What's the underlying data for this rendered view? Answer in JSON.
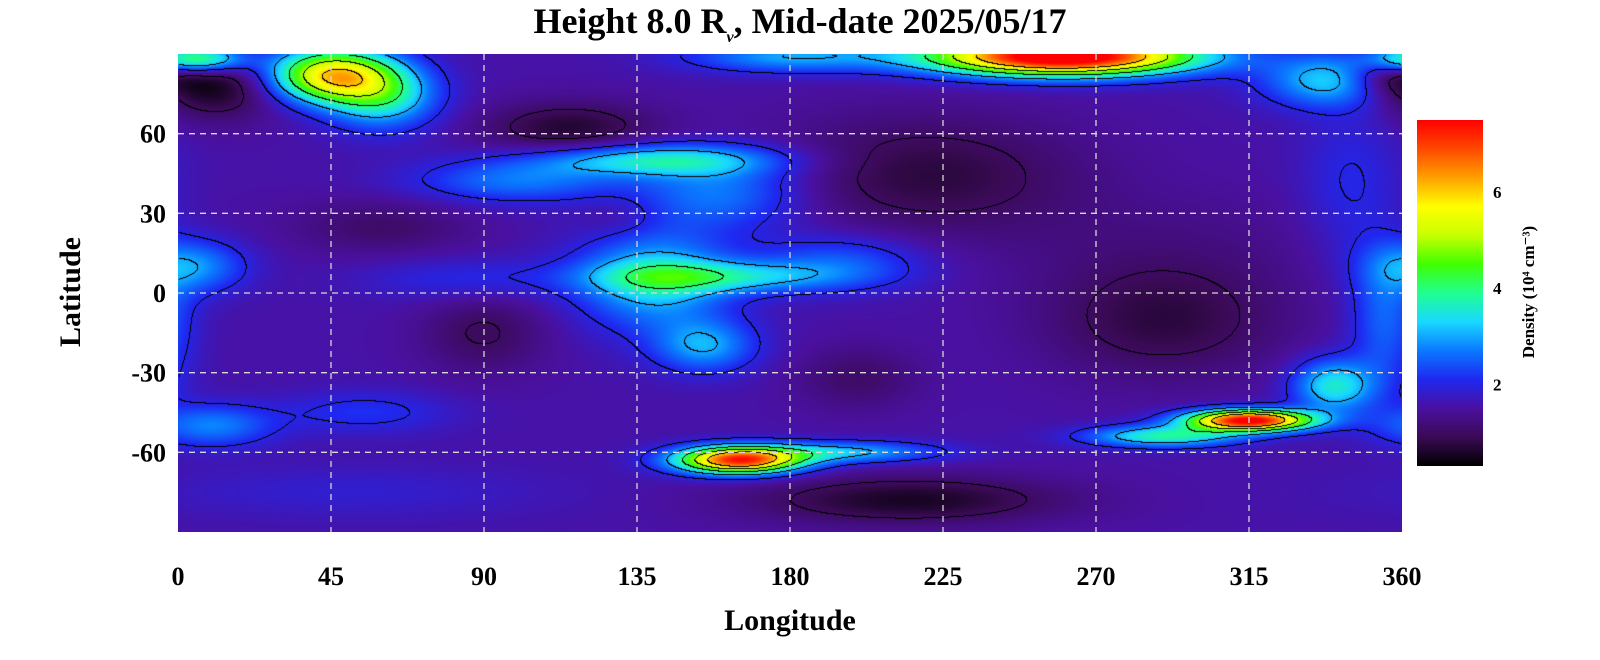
{
  "chart_data": {
    "type": "heatmap",
    "title": {
      "prefix": "Height 8.0 R",
      "subscript": "ν",
      "suffix": ", Mid-date 2025/05/17"
    },
    "xlabel": "Longitude",
    "ylabel": "Latitude",
    "x_ticks": [
      0,
      45,
      90,
      135,
      180,
      225,
      270,
      315,
      360
    ],
    "y_ticks": [
      60,
      30,
      0,
      -30,
      -60
    ],
    "xlim": [
      0,
      360
    ],
    "ylim": [
      -90,
      90
    ],
    "grid": true,
    "contour_lines": true,
    "colorbar": {
      "label": "Density (10⁴ cm⁻³)",
      "ticks": [
        2,
        4,
        6
      ],
      "range": [
        0.3,
        7.5
      ],
      "colormap": [
        "#000000",
        "#3a0a55",
        "#4a10a0",
        "#1f28f0",
        "#0a78ff",
        "#19d8ff",
        "#20ff90",
        "#40ff00",
        "#c8ff00",
        "#ffff00",
        "#ffa000",
        "#ff4800",
        "#ff0000"
      ]
    },
    "base_density": 1.55,
    "features": [
      {
        "lon": 10,
        "lat": 78,
        "amp": -1.2,
        "w": 20,
        "h": 12
      },
      {
        "lon": 45,
        "lat": 82,
        "amp": 4.2,
        "w": 18,
        "h": 10
      },
      {
        "lon": 60,
        "lat": 74,
        "amp": 2.0,
        "w": 16,
        "h": 12
      },
      {
        "lon": 5,
        "lat": 88,
        "amp": 3.0,
        "w": 14,
        "h": 5
      },
      {
        "lon": 115,
        "lat": 62,
        "amp": -0.9,
        "w": 25,
        "h": 10
      },
      {
        "lon": 260,
        "lat": 89,
        "amp": 6.8,
        "w": 38,
        "h": 7
      },
      {
        "lon": 180,
        "lat": 89,
        "amp": 1.4,
        "w": 30,
        "h": 6
      },
      {
        "lon": 340,
        "lat": 80,
        "amp": 1.8,
        "w": 20,
        "h": 10
      },
      {
        "lon": 355,
        "lat": 82,
        "amp": -1.0,
        "w": 12,
        "h": 8
      },
      {
        "lon": 140,
        "lat": 50,
        "amp": 1.9,
        "w": 35,
        "h": 6
      },
      {
        "lon": 100,
        "lat": 42,
        "amp": 1.1,
        "w": 30,
        "h": 8
      },
      {
        "lon": 160,
        "lat": 38,
        "amp": 1.2,
        "w": 25,
        "h": 14
      },
      {
        "lon": 140,
        "lat": 5,
        "amp": 1.8,
        "w": 22,
        "h": 18
      },
      {
        "lon": 160,
        "lat": 6,
        "amp": 1.6,
        "w": 35,
        "h": 6
      },
      {
        "lon": 155,
        "lat": -20,
        "amp": 1.4,
        "w": 15,
        "h": 10
      },
      {
        "lon": 195,
        "lat": 12,
        "amp": 0.9,
        "w": 25,
        "h": 10
      },
      {
        "lon": 5,
        "lat": 10,
        "amp": 1.3,
        "w": 15,
        "h": 10
      },
      {
        "lon": 10,
        "lat": -50,
        "amp": 1.2,
        "w": 18,
        "h": 8
      },
      {
        "lon": 55,
        "lat": -45,
        "amp": 0.6,
        "w": 25,
        "h": 8
      },
      {
        "lon": 85,
        "lat": 5,
        "amp": 0.5,
        "w": 30,
        "h": 8
      },
      {
        "lon": 165,
        "lat": -63,
        "amp": 5.6,
        "w": 18,
        "h": 5
      },
      {
        "lon": 195,
        "lat": -60,
        "amp": 1.6,
        "w": 28,
        "h": 4
      },
      {
        "lon": 315,
        "lat": -48,
        "amp": 6.2,
        "w": 18,
        "h": 4
      },
      {
        "lon": 290,
        "lat": -54,
        "amp": 2.2,
        "w": 22,
        "h": 4
      },
      {
        "lon": 340,
        "lat": -35,
        "amp": 2.0,
        "w": 12,
        "h": 10
      },
      {
        "lon": 355,
        "lat": -10,
        "amp": 1.0,
        "w": 10,
        "h": 25
      },
      {
        "lon": 345,
        "lat": 40,
        "amp": 0.5,
        "w": 15,
        "h": 30
      },
      {
        "lon": 220,
        "lat": 45,
        "amp": -0.8,
        "w": 45,
        "h": 22
      },
      {
        "lon": 290,
        "lat": -10,
        "amp": -0.8,
        "w": 35,
        "h": 22
      },
      {
        "lon": 215,
        "lat": -78,
        "amp": -1.0,
        "w": 45,
        "h": 9
      },
      {
        "lon": 90,
        "lat": -15,
        "amp": -0.6,
        "w": 18,
        "h": 15
      },
      {
        "lon": 60,
        "lat": 25,
        "amp": -0.5,
        "w": 25,
        "h": 10
      },
      {
        "lon": 200,
        "lat": -32,
        "amp": -0.5,
        "w": 18,
        "h": 12
      },
      {
        "lon": 130,
        "lat": 28,
        "amp": -0.3,
        "w": 12,
        "h": 8
      },
      {
        "lon": 50,
        "lat": -75,
        "amp": 0.3,
        "w": 60,
        "h": 10
      },
      {
        "lon": 290,
        "lat": 20,
        "amp": -0.2,
        "w": 60,
        "h": 20
      }
    ]
  }
}
